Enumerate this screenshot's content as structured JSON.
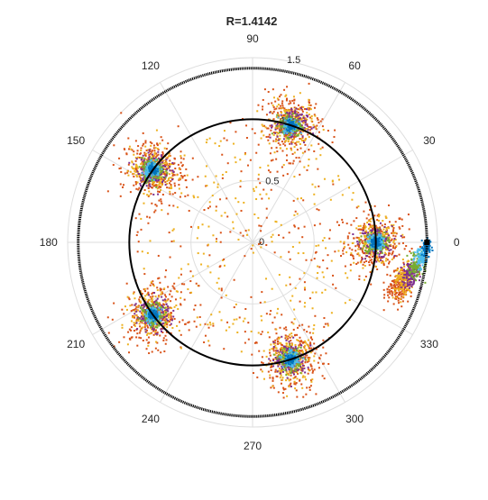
{
  "chart_data": {
    "type": "polar-scatter",
    "title": "R=1.4142",
    "theta_ticks_deg": [
      0,
      30,
      60,
      90,
      120,
      150,
      180,
      210,
      240,
      270,
      300,
      330
    ],
    "theta_tick_labels": [
      "0",
      "30",
      "60",
      "90",
      "120",
      "150",
      "180",
      "210",
      "240",
      "270",
      "300",
      "330"
    ],
    "r_ticks": [
      0,
      0.5,
      1,
      1.5
    ],
    "r_tick_labels": [
      "0",
      "0.5",
      "1",
      "1.5"
    ],
    "rlim": [
      0,
      1.5
    ],
    "grid": true,
    "reference_circles": [
      {
        "r": 1.0,
        "color": "#000000"
      },
      {
        "r": 1.4142,
        "color": "#000000"
      }
    ],
    "marker_point": {
      "theta_deg": 0,
      "r": 1.4142,
      "color": "#000000"
    },
    "series_colors": [
      "#d95319",
      "#edb120",
      "#7e2f8e",
      "#77ac30",
      "#4dbeee",
      "#0072bd"
    ],
    "clusters": [
      {
        "theta_deg": 0,
        "r": 1.0,
        "color_order": "outer-to-inner"
      },
      {
        "theta_deg": 72,
        "r": 1.0,
        "color_order": "outer-to-inner"
      },
      {
        "theta_deg": 144,
        "r": 1.0,
        "color_order": "outer-to-inner"
      },
      {
        "theta_deg": 216,
        "r": 1.0,
        "color_order": "outer-to-inner"
      },
      {
        "theta_deg": 288,
        "r": 1.0,
        "color_order": "outer-to-inner"
      }
    ],
    "offset_cluster": {
      "theta_deg_range": [
        -20,
        -2
      ],
      "r_range": [
        1.2,
        1.41
      ]
    }
  }
}
